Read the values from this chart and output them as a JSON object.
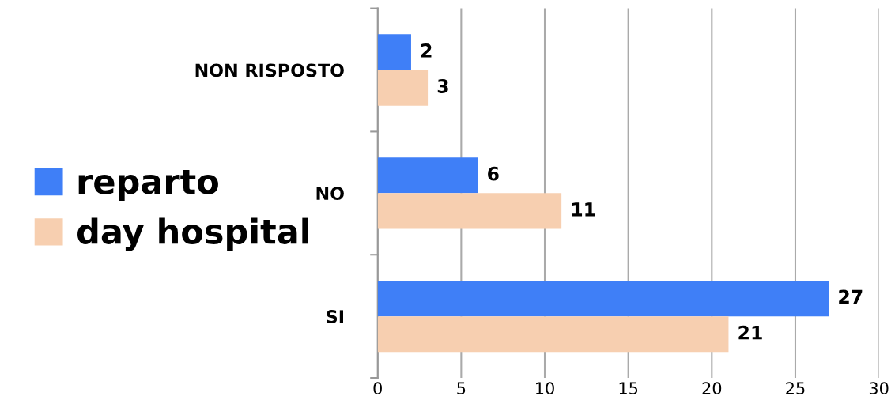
{
  "chart_data": {
    "type": "bar",
    "orientation": "horizontal",
    "categories": [
      "NON RISPOSTO",
      "NO",
      "SI"
    ],
    "series": [
      {
        "name": "reparto",
        "color": "#3f7ff7",
        "values": [
          2,
          6,
          27
        ]
      },
      {
        "name": "day hospital",
        "color": "#f7cfb0",
        "values": [
          3,
          11,
          21
        ]
      }
    ],
    "xlim": [
      0,
      30
    ],
    "xticks": [
      0,
      5,
      10,
      15,
      20,
      25,
      30
    ],
    "grid": "x",
    "legend": "left",
    "data_labels": true
  }
}
